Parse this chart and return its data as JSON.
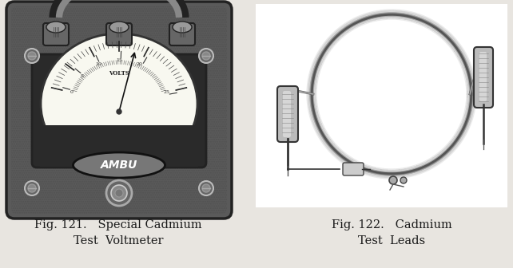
{
  "background_color": "#e8e5e0",
  "fig_width": 6.42,
  "fig_height": 3.36,
  "dpi": 100,
  "caption1_line1": "Fig. 121.   Special Cadmium",
  "caption1_line2": "Test  Voltmeter",
  "caption2_line1": "Fig. 122.   Cadmium",
  "caption2_line2": "Test  Leads",
  "caption_fontsize": 10.5,
  "caption_color": "#1a1a1a",
  "caption_font": "serif",
  "voltmeter_body_color": "#5a5a5a",
  "voltmeter_border_color": "#222222",
  "dial_face_color": "#f8f8f0",
  "knob_color": "#888888",
  "screw_color": "#777777",
  "logo_bg": "#777777",
  "cable_color": "#888888",
  "probe_body_color": "#cccccc",
  "white": "#ffffff"
}
